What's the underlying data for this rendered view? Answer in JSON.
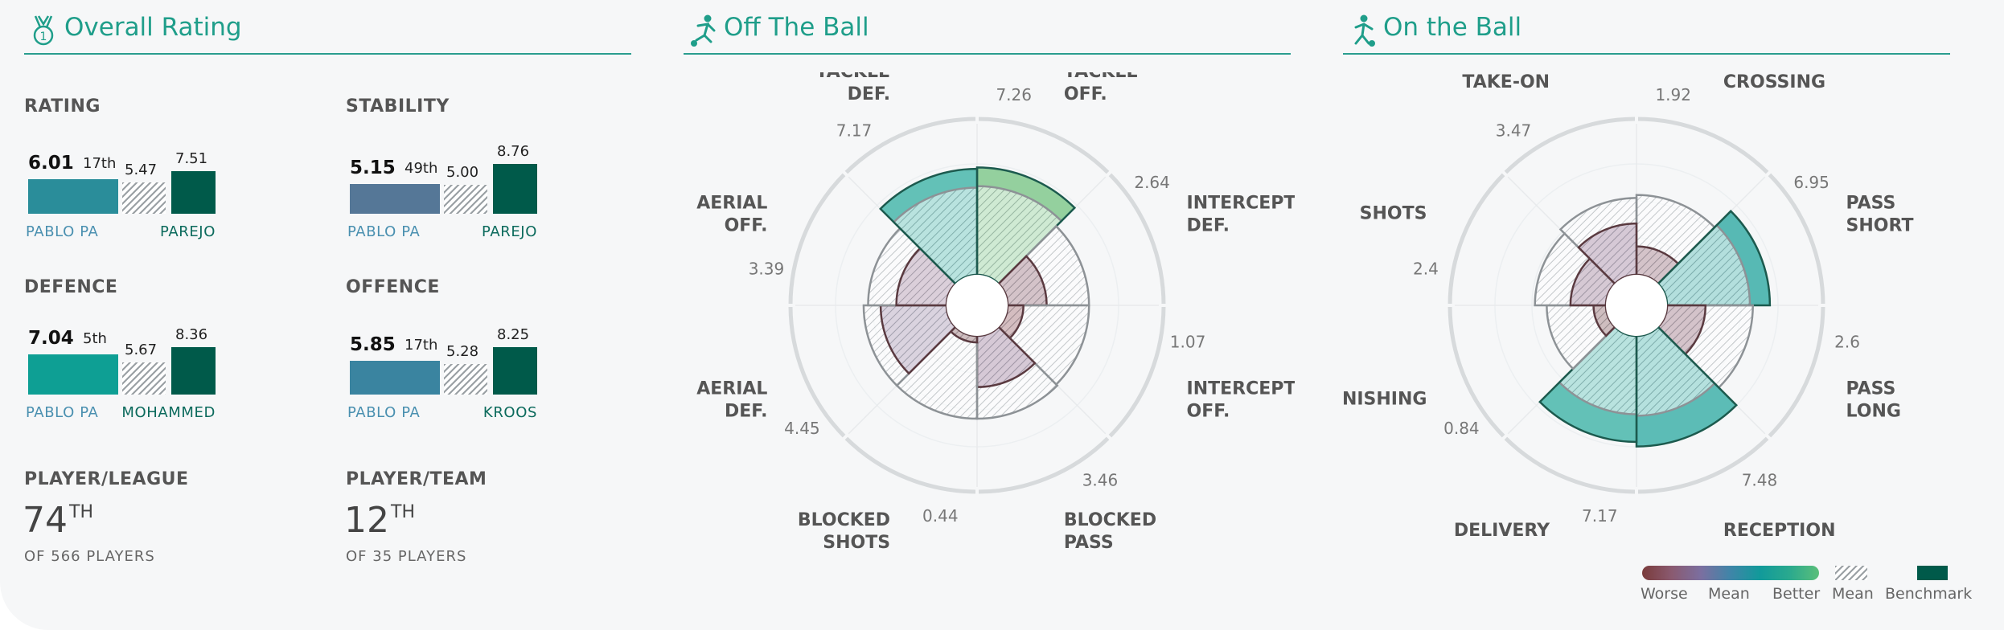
{
  "overall": {
    "title": "Overall Rating",
    "blocks": [
      {
        "label": "RATING",
        "value": "6.01",
        "rank": "17th",
        "mean": "5.47",
        "bench": "7.51",
        "player": "PABLO PA",
        "benchmark": "PAREJO",
        "color": "#2a8d9a"
      },
      {
        "label": "STABILITY",
        "value": "5.15",
        "rank": "49th",
        "mean": "5.00",
        "bench": "8.76",
        "player": "PABLO PA",
        "benchmark": "PAREJO",
        "color": "#557797"
      },
      {
        "label": "DEFENCE",
        "value": "7.04",
        "rank": "5th",
        "mean": "5.67",
        "bench": "8.36",
        "player": "PABLO PA",
        "benchmark": "MOHAMMED",
        "color": "#0e9f94"
      },
      {
        "label": "OFFENCE",
        "value": "5.85",
        "rank": "17th",
        "mean": "5.28",
        "bench": "8.25",
        "player": "PABLO PA",
        "benchmark": "KROOS",
        "color": "#3a84a0"
      }
    ],
    "player_league": {
      "label": "PLAYER/LEAGUE",
      "rank": "74",
      "suffix": "TH",
      "sub": "OF 566 PLAYERS"
    },
    "player_team": {
      "label": "PLAYER/TEAM",
      "rank": "12",
      "suffix": "TH",
      "sub": "OF 35 PLAYERS"
    }
  },
  "off_ball": {
    "title": "Off The Ball"
  },
  "on_ball": {
    "title": "On the Ball"
  },
  "chart_data": [
    {
      "type": "polar-bar",
      "title": "Off The Ball",
      "rmax": 10,
      "categories": [
        {
          "name": "TACKLE\nOFF.",
          "value": 7.26,
          "label": "7.26",
          "mean": 6.0,
          "color": "#7cc587"
        },
        {
          "name": "INTERCEPT\nDEF.",
          "value": 2.64,
          "label": "2.64",
          "mean": 5.5,
          "color": "#8a5a6a"
        },
        {
          "name": "INTERCEPT\nOFF.",
          "value": 1.07,
          "label": "1.07",
          "mean": 5.5,
          "color": "#8a4a52"
        },
        {
          "name": "BLOCKED\nPASS",
          "value": 3.46,
          "label": "3.46",
          "mean": 5.6,
          "color": "#8f6a8f"
        },
        {
          "name": "BLOCKED\nSHOTS",
          "value": 0.44,
          "label": "0.44",
          "mean": 5.6,
          "color": "#7a4a4e"
        },
        {
          "name": "AERIAL\nDEF.",
          "value": 4.45,
          "label": "4.45",
          "mean": 5.6,
          "color": "#9a86a6"
        },
        {
          "name": "AERIAL\nOFF.",
          "value": 3.39,
          "label": "3.39",
          "mean": 5.3,
          "color": "#9f7c98"
        },
        {
          "name": "TACKLE\nDEF.",
          "value": 7.17,
          "label": "7.17",
          "mean": 5.9,
          "color": "#3fb3a6"
        }
      ]
    },
    {
      "type": "polar-bar",
      "title": "On the Ball",
      "rmax": 10,
      "categories": [
        {
          "name": "CROSSING",
          "value": 1.92,
          "label": "1.92",
          "mean": 5.4,
          "color": "#8a5a6a"
        },
        {
          "name": "PASS\nSHORT",
          "value": 6.95,
          "label": "6.95",
          "mean": 5.6,
          "color": "#2fa9a2"
        },
        {
          "name": "PASS\nLONG",
          "value": 2.6,
          "label": "2.6",
          "mean": 5.8,
          "color": "#8a5a6e"
        },
        {
          "name": "RECEPTION",
          "value": 7.48,
          "label": "7.48",
          "mean": 5.4,
          "color": "#36ada5"
        },
        {
          "name": "DELIVERY",
          "value": 7.17,
          "label": "7.17",
          "mean": 5.3,
          "color": "#3fb3a6"
        },
        {
          "name": "FINISHING",
          "value": 0.84,
          "label": "0.84",
          "mean": 4.0,
          "color": "#7a4a4e"
        },
        {
          "name": "SHOTS",
          "value": 2.4,
          "label": "2.4",
          "mean": 4.8,
          "color": "#8f6a8a"
        },
        {
          "name": "TAKE-ON",
          "value": 3.47,
          "label": "3.47",
          "mean": 5.2,
          "color": "#8f6a8f"
        }
      ]
    }
  ],
  "legend": {
    "worse": "Worse",
    "mean": "Mean",
    "better": "Better",
    "mean2": "Mean",
    "benchmark": "Benchmark",
    "gradient": [
      "#7a3b3b",
      "#8a5a70",
      "#7b6fa0",
      "#3f85a8",
      "#119a9a",
      "#2aa98e",
      "#5bbf7a"
    ]
  }
}
